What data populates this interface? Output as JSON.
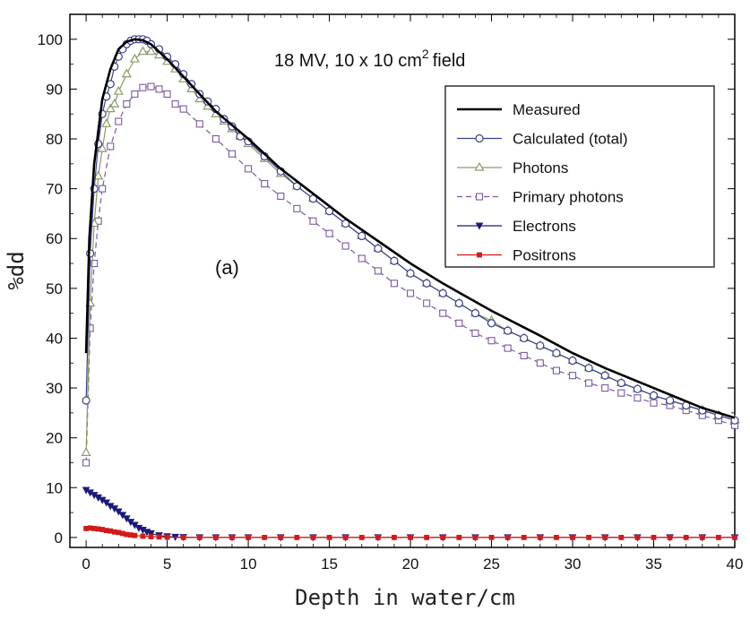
{
  "chart_data": {
    "type": "line",
    "title": "18 MV, 10 x 10 cm",
    "title_superscript": "2",
    "title_suffix": "field",
    "annotation": "(a)",
    "xlabel": "Depth in water/cm",
    "ylabel": "%dd",
    "xlim": [
      -1,
      40
    ],
    "ylim": [
      -2,
      105
    ],
    "xticks": [
      0,
      5,
      10,
      15,
      20,
      25,
      30,
      35,
      40
    ],
    "yticks": [
      0,
      10,
      20,
      30,
      40,
      50,
      60,
      70,
      80,
      90,
      100
    ],
    "grid": false,
    "legend_position": "top-right",
    "series": [
      {
        "name": "Measured",
        "color": "#000000",
        "marker": "none",
        "dash": "solid",
        "x": [
          0,
          0.2,
          0.5,
          1,
          1.5,
          2,
          2.5,
          3,
          3.5,
          4,
          4.5,
          5,
          6,
          7,
          8,
          10,
          12,
          14,
          16,
          18,
          20,
          22,
          25,
          28,
          30,
          32,
          35,
          38,
          40
        ],
        "y": [
          37,
          60,
          75,
          88,
          94,
          98,
          99.5,
          100,
          99.8,
          99,
          97.5,
          96,
          92.5,
          89,
          85.5,
          80,
          74,
          69,
          64,
          59.5,
          55,
          51,
          45.5,
          40.5,
          37,
          34,
          30,
          26,
          24
        ]
      },
      {
        "name": "Calculated (total)",
        "color": "#3a3f8f",
        "marker": "circle",
        "dash": "solid",
        "x": [
          0,
          0.25,
          0.5,
          0.75,
          1,
          1.25,
          1.5,
          1.75,
          2,
          2.25,
          2.5,
          2.75,
          3,
          3.25,
          3.5,
          3.75,
          4,
          4.5,
          5,
          5.5,
          6,
          6.5,
          7,
          7.5,
          8,
          8.5,
          9,
          9.5,
          10,
          11,
          12,
          13,
          14,
          15,
          16,
          17,
          18,
          19,
          20,
          21,
          22,
          23,
          24,
          25,
          26,
          27,
          28,
          29,
          30,
          31,
          32,
          33,
          34,
          35,
          36,
          37,
          38,
          39,
          40
        ],
        "y": [
          27.5,
          57,
          70,
          79,
          85,
          88.5,
          91,
          94.5,
          96.5,
          98,
          99,
          99.7,
          100,
          100,
          100,
          99.7,
          99,
          98,
          96.5,
          95,
          93,
          91,
          89,
          87.5,
          86,
          84,
          82.5,
          80.5,
          79.5,
          76.5,
          73.5,
          70.5,
          68,
          65.5,
          63,
          60.5,
          58,
          55.5,
          53,
          51,
          49,
          47,
          45,
          43,
          41.5,
          40,
          38.5,
          37,
          35.5,
          34,
          32.5,
          31,
          29.8,
          28.5,
          27.5,
          26.5,
          25.5,
          24.5,
          23.5
        ]
      },
      {
        "name": "Photons",
        "color": "#8a9a6a",
        "marker": "triangle",
        "dash": "solid",
        "x": [
          0,
          0.25,
          0.5,
          0.75,
          1,
          1.25,
          1.5,
          1.75,
          2,
          2.5,
          3,
          3.5,
          4,
          4.5,
          5,
          5.5,
          6,
          6.5,
          7,
          7.5,
          8,
          8.5,
          9,
          9.5,
          10,
          11,
          12,
          13,
          14,
          15,
          16,
          17,
          18,
          19,
          20,
          21,
          22,
          23,
          24,
          25,
          26,
          27,
          28,
          29,
          30,
          31,
          32,
          33,
          34,
          35,
          36,
          37,
          38,
          39,
          40
        ],
        "y": [
          17,
          47,
          63,
          72.5,
          78,
          83,
          86,
          87,
          89.5,
          93,
          96,
          97.5,
          97.5,
          96.8,
          95.5,
          94,
          92,
          90,
          88,
          86.5,
          85,
          83.5,
          82,
          80.5,
          79,
          76,
          73,
          70.5,
          68,
          65.5,
          63,
          60.5,
          58,
          55.5,
          53,
          51,
          49,
          47,
          45,
          43.5,
          41.5,
          40,
          38.5,
          37,
          35.5,
          34,
          32.5,
          31,
          29.8,
          28.5,
          27.5,
          26.5,
          25.5,
          24.5,
          23.5
        ]
      },
      {
        "name": "Primary photons",
        "color": "#7b5aa0",
        "marker": "square",
        "dash": "dashed",
        "x": [
          0,
          0.25,
          0.5,
          0.75,
          1,
          1.5,
          2,
          2.5,
          3,
          3.5,
          4,
          4.5,
          5,
          5.5,
          6,
          7,
          8,
          9,
          10,
          11,
          12,
          13,
          14,
          15,
          16,
          17,
          18,
          19,
          20,
          21,
          22,
          23,
          24,
          25,
          26,
          27,
          28,
          29,
          30,
          31,
          32,
          33,
          34,
          35,
          36,
          37,
          38,
          39,
          40
        ],
        "y": [
          15,
          42,
          55,
          63.5,
          70,
          78.5,
          83.5,
          87,
          89,
          90.3,
          90.5,
          90,
          89,
          87,
          86,
          83,
          80,
          77,
          74,
          71,
          68.5,
          66,
          63.5,
          61,
          58.5,
          56,
          53.5,
          51,
          49,
          47,
          45,
          43,
          41,
          39.5,
          38,
          36.5,
          35,
          33.5,
          32.5,
          31,
          30,
          29,
          28,
          27,
          26.5,
          25.5,
          24.5,
          23.5,
          22.5
        ]
      },
      {
        "name": "Electrons",
        "color": "#1a1a7a",
        "marker": "triangle-down",
        "dash": "solid",
        "x": [
          0,
          0.25,
          0.5,
          0.75,
          1,
          1.25,
          1.5,
          1.75,
          2,
          2.25,
          2.5,
          2.75,
          3,
          3.25,
          3.5,
          3.75,
          4,
          4.5,
          5,
          5.5,
          6,
          7,
          8,
          9,
          10,
          12,
          14,
          16,
          18,
          20,
          22,
          24,
          26,
          28,
          30,
          32,
          34,
          36,
          38,
          40
        ],
        "y": [
          9.5,
          9,
          8.5,
          8,
          7.5,
          7,
          6.3,
          5.8,
          5.2,
          4.5,
          3.8,
          3.1,
          2.5,
          1.9,
          1.5,
          1.1,
          0.8,
          0.4,
          0.2,
          0.1,
          0.05,
          0,
          0,
          0,
          0,
          0,
          0,
          0,
          0,
          0,
          0,
          0,
          0,
          0,
          0,
          0,
          0,
          0,
          0,
          0
        ]
      },
      {
        "name": "Positrons",
        "color": "#d11a1a",
        "marker": "filled-square",
        "dash": "solid",
        "x": [
          0,
          0.25,
          0.5,
          0.75,
          1,
          1.25,
          1.5,
          1.75,
          2,
          2.25,
          2.5,
          2.75,
          3,
          3.5,
          4,
          4.5,
          5,
          6,
          7,
          8,
          9,
          10,
          11,
          12,
          13,
          14,
          15,
          16,
          17,
          18,
          19,
          20,
          21,
          22,
          23,
          24,
          25,
          26,
          27,
          28,
          29,
          30,
          31,
          32,
          33,
          34,
          35,
          36,
          37,
          38,
          39,
          40
        ],
        "y": [
          1.8,
          1.9,
          1.8,
          1.7,
          1.6,
          1.4,
          1.3,
          1.1,
          1.0,
          0.8,
          0.6,
          0.5,
          0.4,
          0.25,
          0.15,
          0.1,
          0.05,
          0,
          0,
          0,
          0,
          0,
          0,
          0,
          0,
          0,
          0,
          0,
          0,
          0,
          0,
          0,
          0,
          0,
          0,
          0,
          0,
          0,
          0,
          0,
          0,
          0,
          0,
          0,
          0,
          0,
          0,
          0,
          0,
          0,
          0,
          0
        ]
      }
    ]
  }
}
